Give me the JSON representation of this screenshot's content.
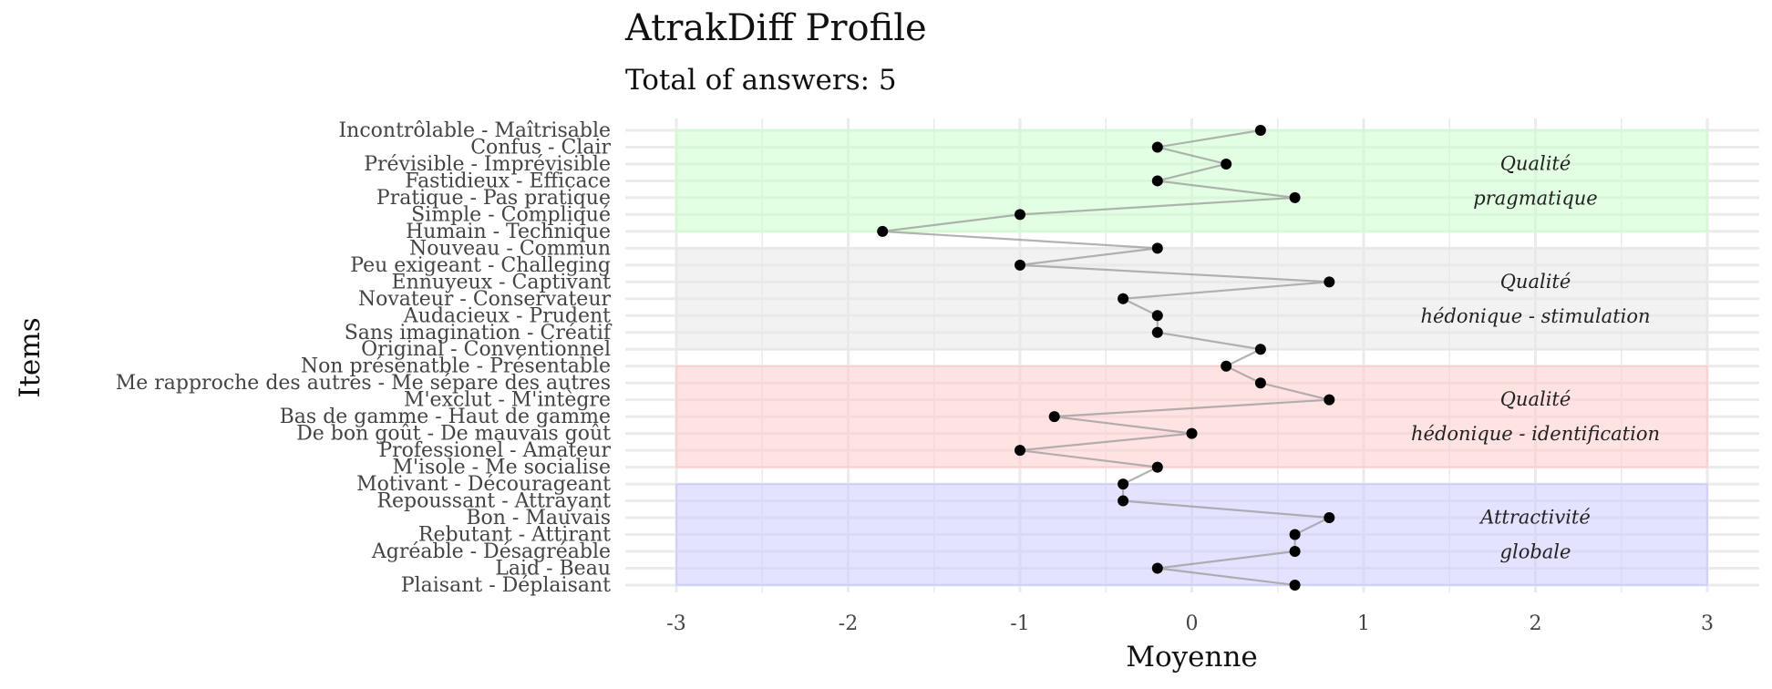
{
  "chart_data": {
    "type": "line",
    "title": "AtrakDiff Profile",
    "subtitle": "Total of answers: 5",
    "xlabel": "Moyenne",
    "ylabel": "Items",
    "xlim": [
      -3,
      3
    ],
    "x_ticks": [
      "-3",
      "-2",
      "-1",
      "0",
      "1",
      "2",
      "3"
    ],
    "grid": true,
    "items": [
      {
        "label": "Incontrôlable - Maîtrisable",
        "value": 0.4
      },
      {
        "label": "Confus - Clair",
        "value": -0.2
      },
      {
        "label": "Prévisible - Imprévisible",
        "value": 0.2
      },
      {
        "label": "Fastidieux - Efficace",
        "value": -0.2
      },
      {
        "label": "Pratique - Pas pratique",
        "value": 0.6
      },
      {
        "label": "Simple - Compliqué",
        "value": -1.0
      },
      {
        "label": "Humain - Technique",
        "value": -1.8
      },
      {
        "label": "Nouveau - Commun",
        "value": -0.2
      },
      {
        "label": "Peu exigeant - Challeging",
        "value": -1.0
      },
      {
        "label": "Ennuyeux - Captivant",
        "value": 0.8
      },
      {
        "label": "Novateur - Conservateur",
        "value": -0.4
      },
      {
        "label": "Audacieux - Prudent",
        "value": -0.2
      },
      {
        "label": "Sans imagination - Créatif",
        "value": -0.2
      },
      {
        "label": "Original - Conventionnel",
        "value": 0.4
      },
      {
        "label": "Non présenatble - Présentable",
        "value": 0.2
      },
      {
        "label": "Me rapproche des autres - Me sépare des autres",
        "value": 0.4
      },
      {
        "label": "M'exclut - M'intègre",
        "value": 0.8
      },
      {
        "label": "Bas de gamme - Haut de gamme",
        "value": -0.8
      },
      {
        "label": "De bon goût - De mauvais goût",
        "value": 0.0
      },
      {
        "label": "Professionel - Amateur",
        "value": -1.0
      },
      {
        "label": "M'isole - Me socialise",
        "value": -0.2
      },
      {
        "label": "Motivant - Décourageant",
        "value": -0.4
      },
      {
        "label": "Repoussant - Attrayant",
        "value": -0.4
      },
      {
        "label": "Bon - Mauvais",
        "value": 0.8
      },
      {
        "label": "Rebutant - Attirant",
        "value": 0.6
      },
      {
        "label": "Agréable - Désagréable",
        "value": 0.6
      },
      {
        "label": "Laid - Beau",
        "value": -0.2
      },
      {
        "label": "Plaisant - Déplaisant",
        "value": 0.6
      }
    ],
    "bands": [
      {
        "line1": "Qualité",
        "line2": "pragmatique",
        "from_item": 0,
        "to_item": 6,
        "color": "#ccffcc"
      },
      {
        "line1": "Qualité",
        "line2": "hédonique - stimulation",
        "from_item": 7,
        "to_item": 13,
        "color": "#e8e8e8"
      },
      {
        "line1": "Qualité",
        "line2": "hédonique - identification",
        "from_item": 14,
        "to_item": 20,
        "color": "#ffcccc"
      },
      {
        "line1": "Attractivité",
        "line2": "globale",
        "from_item": 21,
        "to_item": 27,
        "color": "#ccccff"
      }
    ],
    "line_color": "#999999",
    "point_color": "#000000"
  }
}
